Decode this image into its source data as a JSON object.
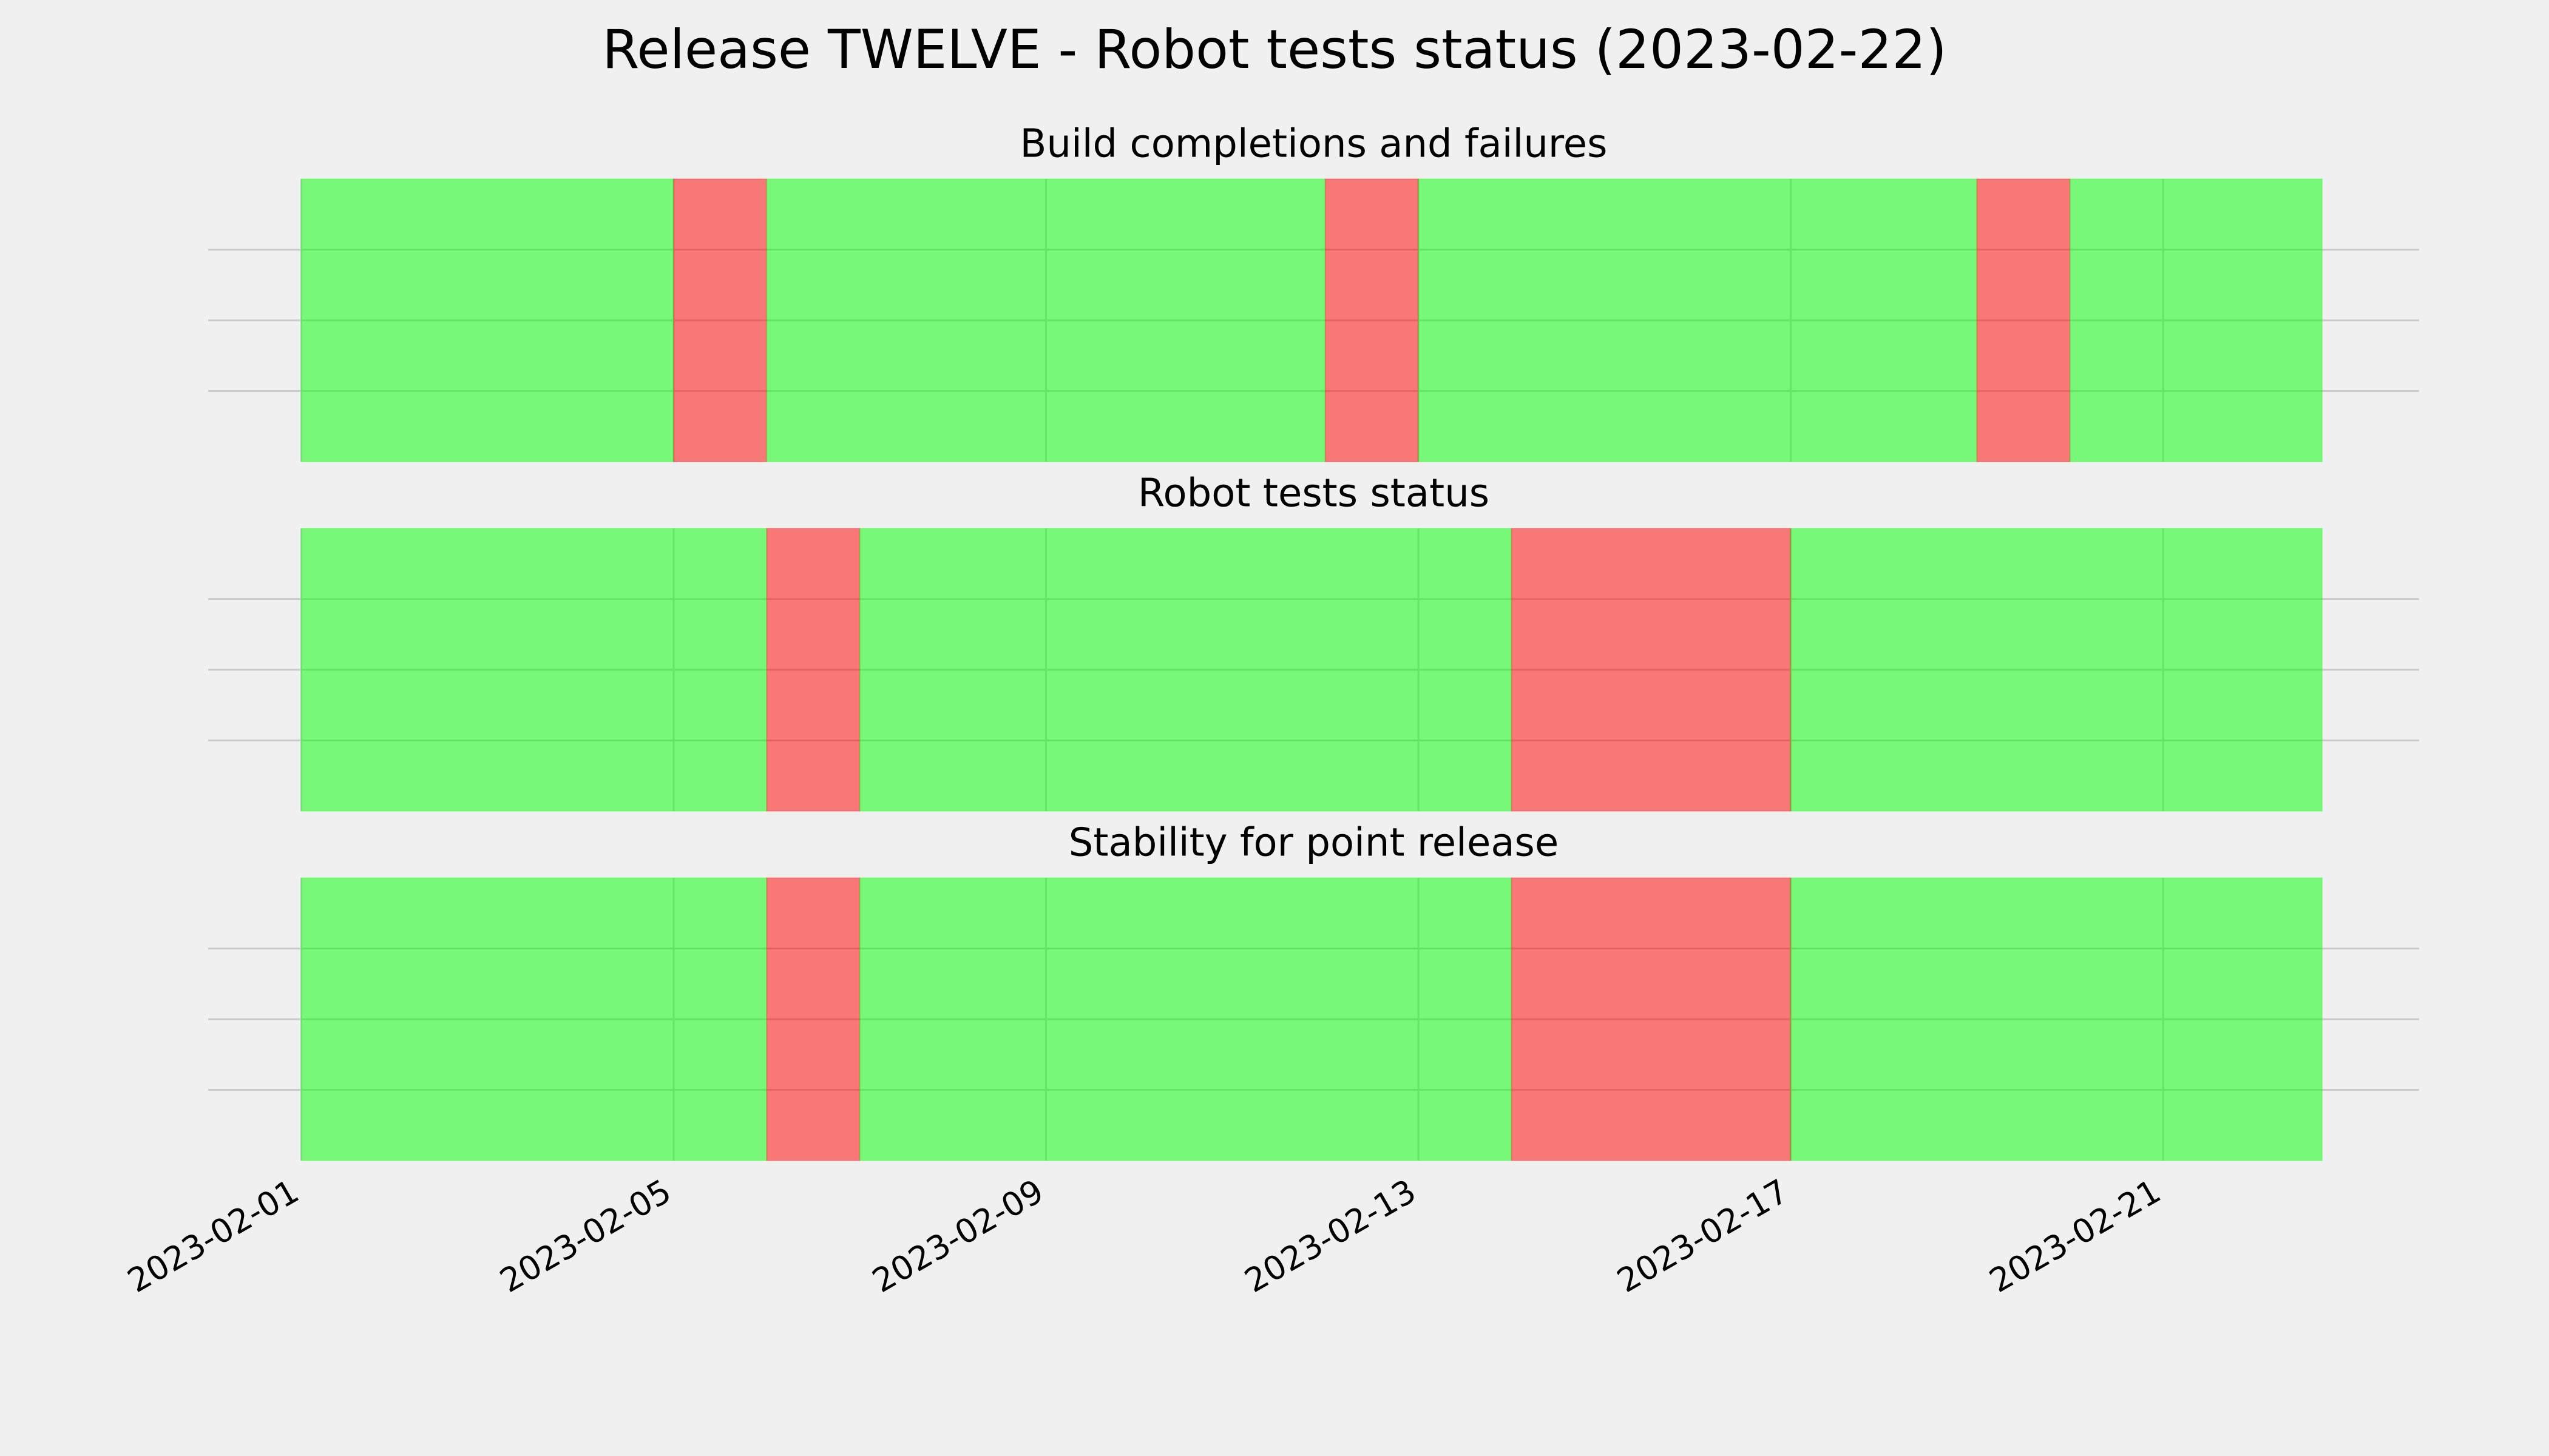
{
  "title": "Release TWELVE - Robot tests status (2023-02-22)",
  "chart_data": [
    {
      "type": "timeline",
      "title": "Build completions and failures",
      "segments": [
        {
          "start": "2023-02-01",
          "end": "2023-02-05",
          "color": "#00ff00"
        },
        {
          "start": "2023-02-05",
          "end": "2023-02-06",
          "color": "#ff0000"
        },
        {
          "start": "2023-02-06",
          "end": "2023-02-12",
          "color": "#00ff00"
        },
        {
          "start": "2023-02-12",
          "end": "2023-02-13",
          "color": "#ff0000"
        },
        {
          "start": "2023-02-13",
          "end": "2023-02-19",
          "color": "#00ff00"
        },
        {
          "start": "2023-02-19",
          "end": "2023-02-20",
          "color": "#ff0000"
        },
        {
          "start": "2023-02-20",
          "end": "2023-02-22T17:00",
          "color": "#00ff00"
        }
      ],
      "alpha": 0.5,
      "xlim": [
        "2023-01-31T00:00",
        "2023-02-23T18:00"
      ],
      "xticks": [
        "2023-02-01",
        "2023-02-05",
        "2023-02-09",
        "2023-02-13",
        "2023-02-17",
        "2023-02-21"
      ],
      "ylim": [
        0,
        1
      ],
      "yticks": [
        0.25,
        0.5,
        0.75
      ],
      "grid": true
    },
    {
      "type": "timeline",
      "title": "Robot tests status",
      "segments": [
        {
          "start": "2023-02-01",
          "end": "2023-02-06",
          "color": "#00ff00"
        },
        {
          "start": "2023-02-06",
          "end": "2023-02-07",
          "color": "#ff0000"
        },
        {
          "start": "2023-02-07",
          "end": "2023-02-14",
          "color": "#00ff00"
        },
        {
          "start": "2023-02-14",
          "end": "2023-02-17",
          "color": "#ff0000"
        },
        {
          "start": "2023-02-17",
          "end": "2023-02-22T17:00",
          "color": "#00ff00"
        }
      ],
      "alpha": 0.5,
      "xlim": [
        "2023-01-31T00:00",
        "2023-02-23T18:00"
      ],
      "xticks": [
        "2023-02-01",
        "2023-02-05",
        "2023-02-09",
        "2023-02-13",
        "2023-02-17",
        "2023-02-21"
      ],
      "ylim": [
        0,
        1
      ],
      "yticks": [
        0.25,
        0.5,
        0.75
      ],
      "grid": true
    },
    {
      "type": "timeline",
      "title": "Stability for point release",
      "segments": [
        {
          "start": "2023-02-01",
          "end": "2023-02-06",
          "color": "#00ff00"
        },
        {
          "start": "2023-02-06",
          "end": "2023-02-07",
          "color": "#ff0000"
        },
        {
          "start": "2023-02-07",
          "end": "2023-02-14",
          "color": "#00ff00"
        },
        {
          "start": "2023-02-14",
          "end": "2023-02-17",
          "color": "#ff0000"
        },
        {
          "start": "2023-02-17",
          "end": "2023-02-22T17:00",
          "color": "#00ff00"
        }
      ],
      "alpha": 0.5,
      "xlim": [
        "2023-01-31T00:00",
        "2023-02-23T18:00"
      ],
      "xticks": [
        "2023-02-01",
        "2023-02-05",
        "2023-02-09",
        "2023-02-13",
        "2023-02-17",
        "2023-02-21"
      ],
      "ylim": [
        0,
        1
      ],
      "yticks": [
        0.25,
        0.5,
        0.75
      ],
      "grid": true,
      "show_xtick_labels": true
    }
  ]
}
